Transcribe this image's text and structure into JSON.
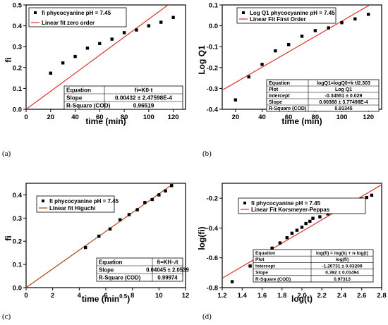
{
  "chart_data": [
    {
      "panel": "(a)",
      "type": "scatter",
      "xlabel": "time (min)",
      "ylabel": "fi",
      "xlim": [
        0,
        130
      ],
      "ylim": [
        0,
        0.5
      ],
      "xticks": [
        0,
        20,
        40,
        60,
        80,
        100,
        120
      ],
      "yticks": [
        0,
        0.1,
        0.2,
        0.3,
        0.4,
        0.5
      ],
      "ytick_labels": [
        "0.0",
        "0.1",
        "0.2",
        "0.3",
        "0.4",
        "0.5"
      ],
      "series": [
        {
          "name": "fi phycocyanine pH = 7.45",
          "kind": "scatter",
          "x": [
            20,
            30,
            40,
            50,
            60,
            70,
            80,
            90,
            100,
            110,
            120
          ],
          "y": [
            0.173,
            0.222,
            0.253,
            0.293,
            0.315,
            0.336,
            0.367,
            0.38,
            0.4,
            0.417,
            0.44
          ]
        },
        {
          "name": "Linear fit zero order",
          "kind": "line",
          "slope": 0.00432,
          "intercept": 0
        }
      ],
      "table": [
        [
          "Equation",
          "fi=K0·t"
        ],
        [
          "Slope",
          "0.00432 ± 2.47598E-4"
        ],
        [
          "R-Square (COD)",
          "0.96519"
        ]
      ],
      "legend_position": "top-left",
      "colors": {
        "marker": "#000000",
        "fit": "#e0302b"
      }
    },
    {
      "panel": "(b)",
      "type": "scatter",
      "xlabel": "time (min)",
      "ylabel": "Log Q1",
      "xlim": [
        10,
        130
      ],
      "ylim": [
        -0.4,
        0.1
      ],
      "xticks": [
        20,
        40,
        60,
        80,
        100,
        120
      ],
      "yticks": [
        -0.4,
        -0.3,
        -0.2,
        -0.1,
        0,
        0.1
      ],
      "ytick_labels": [
        "-0.4",
        "-0.3",
        "-0.2",
        "-0.1",
        "0.0",
        "0.1"
      ],
      "series": [
        {
          "name": "Log Q1 phycocyanine pH = 7.45",
          "kind": "scatter",
          "x": [
            20,
            30,
            40,
            50,
            60,
            70,
            80,
            90,
            100,
            110,
            120
          ],
          "y": [
            -0.355,
            -0.245,
            -0.185,
            -0.12,
            -0.09,
            -0.05,
            -0.023,
            -0.01,
            0.015,
            0.033,
            0.055
          ]
        },
        {
          "name": "Linear Fit First Order",
          "kind": "line",
          "slope": 0.00368,
          "intercept": -0.34551
        }
      ],
      "table": [
        [
          "Equation",
          "logQ1=logQ0+k·t/2.303"
        ],
        [
          "Plot",
          "Log Q1"
        ],
        [
          "Intercept",
          "-0.34551 ± 0.029"
        ],
        [
          "Slope",
          "0.00368 ± 3.77498E-4"
        ],
        [
          "R-Square (COD)",
          "0.91345"
        ]
      ],
      "legend_position": "top-left",
      "colors": {
        "marker": "#000000",
        "fit": "#e0302b"
      }
    },
    {
      "panel": "(c)",
      "type": "scatter",
      "xlabel": "time (min0.5)",
      "ylabel": "fi",
      "xlim": [
        0,
        12
      ],
      "ylim": [
        0,
        0.45
      ],
      "xticks": [
        0,
        2,
        4,
        6,
        8,
        10,
        12
      ],
      "yticks": [
        0,
        0.1,
        0.2,
        0.3,
        0.4
      ],
      "ytick_labels": [
        "0.0",
        "0.1",
        "0.2",
        "0.3",
        "0.4"
      ],
      "series": [
        {
          "name": "fi phycocyanine pH = 7.45",
          "kind": "scatter",
          "x": [
            4.47,
            5.48,
            6.32,
            7.07,
            7.75,
            8.37,
            8.94,
            9.49,
            10.0,
            10.49,
            10.95
          ],
          "y": [
            0.173,
            0.222,
            0.253,
            0.293,
            0.315,
            0.336,
            0.367,
            0.38,
            0.4,
            0.417,
            0.44
          ]
        },
        {
          "name": "Linear fit Higuchi",
          "kind": "line",
          "slope": 0.04045,
          "intercept": 0
        }
      ],
      "table": [
        [
          "Equation",
          "fi=KH·√t"
        ],
        [
          "Slope",
          "0.04045 ± 2.0539"
        ],
        [
          "R-Square (COD)",
          "0.99974"
        ]
      ],
      "legend_position": "top-left",
      "colors": {
        "marker": "#000000",
        "fit": "#b5401c"
      }
    },
    {
      "panel": "(d)",
      "type": "scatter",
      "xlabel": "log(t)",
      "ylabel": "log(fi)",
      "xlim": [
        1.2,
        2.8
      ],
      "ylim": [
        -0.8,
        -0.1
      ],
      "xticks": [
        1.2,
        1.4,
        1.6,
        1.8,
        2.0,
        2.2,
        2.4,
        2.6,
        2.8
      ],
      "xtick_labels": [
        "1.2",
        "1.4",
        "1.6",
        "1.8",
        "2.0",
        "2.2",
        "2.4",
        "2.6",
        "2.8"
      ],
      "yticks": [
        -0.8,
        -0.6,
        -0.4,
        -0.2
      ],
      "ytick_labels": [
        "-0.8",
        "-0.6",
        "-0.4",
        "-0.2"
      ],
      "series": [
        {
          "name": "fi phycocyanine pH = 7.45",
          "kind": "scatter",
          "x": [
            1.3,
            1.48,
            1.6,
            1.7,
            1.78,
            1.85,
            1.9,
            1.95,
            2.0,
            2.04,
            2.08,
            2.11,
            2.18,
            2.26,
            2.32,
            2.38,
            2.43,
            2.48,
            2.53,
            2.6,
            2.65,
            2.7
          ],
          "y": [
            -0.76,
            -0.655,
            -0.595,
            -0.535,
            -0.5,
            -0.465,
            -0.435,
            -0.415,
            -0.395,
            -0.37,
            -0.355,
            -0.335,
            -0.325,
            -0.305,
            -0.29,
            -0.265,
            -0.25,
            -0.24,
            -0.225,
            -0.205,
            -0.195,
            -0.18
          ]
        },
        {
          "name": "Linear Fit Korsmeyer-Peppas",
          "kind": "line",
          "slope": 0.392,
          "intercept": -1.20731
        }
      ],
      "table": [
        [
          "Equation",
          "log(fi) = log(k) + n·log(t)"
        ],
        [
          "Plot",
          "log(fi)"
        ],
        [
          "Intercept",
          "-1.20731 ± 0.03209"
        ],
        [
          "Slope",
          "0.392 ± 0.01494"
        ],
        [
          "R-Square (COD)",
          "0.97313"
        ]
      ],
      "legend_position": "top-left",
      "colors": {
        "marker": "#000000",
        "fit": "#e0302b"
      }
    }
  ]
}
